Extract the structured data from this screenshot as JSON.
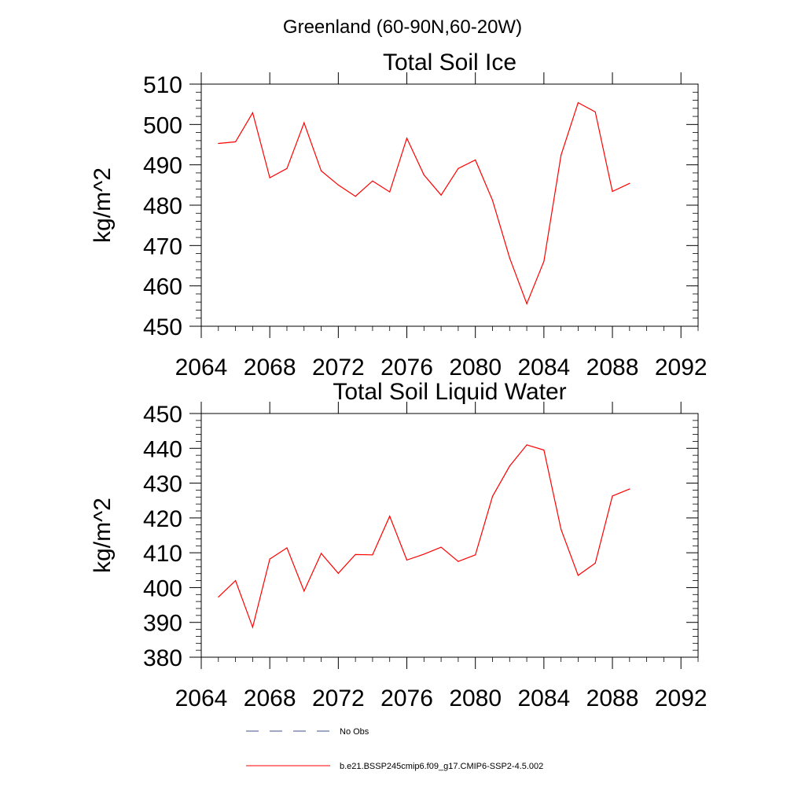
{
  "page_title": "Greenland (60-90N,60-20W)",
  "colors": {
    "series": "#ff0000",
    "no_obs": "#3f4f8f",
    "axis": "#000000"
  },
  "legend": [
    {
      "label": "No Obs",
      "style": "dashed",
      "color": "#3f4f8f"
    },
    {
      "label": "b.e21.BSSP245cmip6.f09_g17.CMIP6-SSP2-4.5.002",
      "style": "solid",
      "color": "#ff0000"
    }
  ],
  "chart_data": [
    {
      "type": "line",
      "title": "Total Soil Ice",
      "xlabel": "",
      "ylabel": "kg/m^2",
      "xlim": [
        2064,
        2093
      ],
      "ylim": [
        450,
        510
      ],
      "xticks": [
        2064,
        2068,
        2072,
        2076,
        2080,
        2084,
        2088,
        2092
      ],
      "yticks": [
        450,
        460,
        470,
        480,
        490,
        500,
        510
      ],
      "grid": false,
      "series": [
        {
          "color": "#ff0000",
          "x": [
            2065,
            2066,
            2067,
            2068,
            2069,
            2070,
            2071,
            2072,
            2073,
            2074,
            2075,
            2076,
            2077,
            2078,
            2079,
            2080,
            2081,
            2082,
            2083,
            2084,
            2085,
            2086,
            2087,
            2088,
            2089
          ],
          "values": [
            495.3,
            495.7,
            502.9,
            486.8,
            489.1,
            500.4,
            488.5,
            485.0,
            482.2,
            486.0,
            483.3,
            496.6,
            487.5,
            482.5,
            489.1,
            491.2,
            481.2,
            466.9,
            455.6,
            466.1,
            492.4,
            505.4,
            503.1,
            483.4,
            485.4
          ]
        }
      ]
    },
    {
      "type": "line",
      "title": "Total Soil Liquid Water",
      "xlabel": "",
      "ylabel": "kg/m^2",
      "xlim": [
        2064,
        2093
      ],
      "ylim": [
        380,
        450
      ],
      "xticks": [
        2064,
        2068,
        2072,
        2076,
        2080,
        2084,
        2088,
        2092
      ],
      "yticks": [
        380,
        390,
        400,
        410,
        420,
        430,
        440,
        450
      ],
      "grid": false,
      "series": [
        {
          "color": "#ff0000",
          "x": [
            2065,
            2066,
            2067,
            2068,
            2069,
            2070,
            2071,
            2072,
            2073,
            2074,
            2075,
            2076,
            2077,
            2078,
            2079,
            2080,
            2081,
            2082,
            2083,
            2084,
            2085,
            2086,
            2087,
            2088,
            2089
          ],
          "values": [
            397.3,
            402.0,
            388.6,
            408.2,
            411.4,
            399.0,
            409.8,
            404.1,
            409.5,
            409.4,
            420.5,
            407.9,
            409.6,
            411.6,
            407.5,
            409.4,
            426.2,
            434.9,
            441.0,
            439.5,
            416.7,
            403.5,
            407.0,
            426.3,
            428.3
          ]
        }
      ]
    }
  ]
}
